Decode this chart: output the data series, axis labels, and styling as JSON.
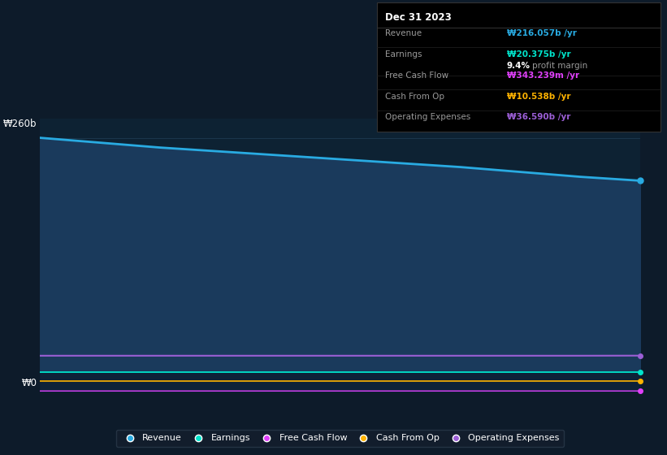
{
  "bg_color": "#0d1b2a",
  "plot_bg_color": "#0d2233",
  "y_label_top": "₩260b",
  "y_label_bottom": "₩0",
  "x_values": [
    0,
    1,
    2,
    3,
    4,
    5,
    6,
    7,
    8,
    9,
    10
  ],
  "revenue": [
    260,
    255,
    250,
    246,
    242,
    238,
    234,
    230,
    225,
    220,
    216
  ],
  "earnings": [
    20,
    20,
    20,
    20,
    20,
    20,
    20,
    20,
    20,
    20,
    20
  ],
  "free_cash_flow": [
    0.34,
    0.34,
    0.34,
    0.34,
    0.34,
    0.34,
    0.34,
    0.34,
    0.34,
    0.34,
    0.343
  ],
  "cash_from_op": [
    10.5,
    10.5,
    10.5,
    10.5,
    10.5,
    10.5,
    10.5,
    10.5,
    10.5,
    10.5,
    10.538
  ],
  "operating_expenses": [
    36.5,
    36.5,
    36.5,
    36.5,
    36.5,
    36.5,
    36.5,
    36.5,
    36.5,
    36.5,
    36.59
  ],
  "revenue_color": "#29abe2",
  "earnings_color": "#00e5cc",
  "free_cash_flow_color": "#e040fb",
  "cash_from_op_color": "#ffb300",
  "operating_expenses_color": "#9c5fd6",
  "revenue_fill": "#1a3a5c",
  "earnings_fill": "#0d2233",
  "grid_color": "#1e3a50",
  "legend_bg": "#141e2d",
  "legend_border": "#2a3a4a",
  "tooltip": {
    "date": "Dec 31 2023",
    "revenue_val": "₩216.057b",
    "earnings_val": "₩20.375b",
    "profit_margin": "9.4%",
    "fcf_val": "₩343.239m",
    "cash_from_op_val": "₩10.538b",
    "op_expenses_val": "₩36.590b"
  },
  "ylim": [
    0,
    280
  ],
  "xlim": [
    0,
    10
  ]
}
